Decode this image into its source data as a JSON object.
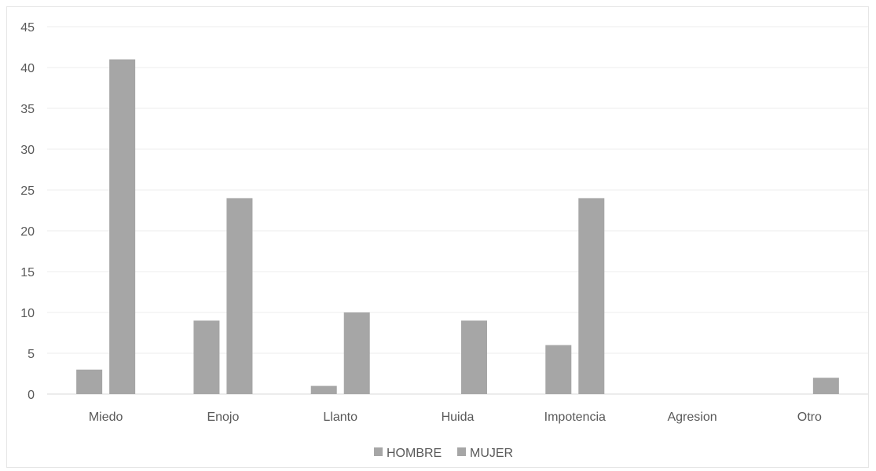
{
  "chart_data": {
    "type": "bar",
    "categories": [
      "Miedo",
      "Enojo",
      "Llanto",
      "Huida",
      "Impotencia",
      "Agresion",
      "Otro"
    ],
    "series": [
      {
        "name": "HOMBRE",
        "values": [
          3,
          9,
          1,
          0,
          6,
          0,
          0
        ],
        "color": "#a6a6a6"
      },
      {
        "name": "MUJER",
        "values": [
          41,
          24,
          10,
          9,
          24,
          0,
          2
        ],
        "color": "#a6a6a6"
      }
    ],
    "ylim": [
      0,
      45
    ],
    "yticks": [
      0,
      5,
      10,
      15,
      20,
      25,
      30,
      35,
      40,
      45
    ],
    "grid": true,
    "legend_position": "bottom"
  },
  "colors": {
    "grid": "#ededed",
    "axis": "#d9d9d9",
    "text": "#595959"
  }
}
